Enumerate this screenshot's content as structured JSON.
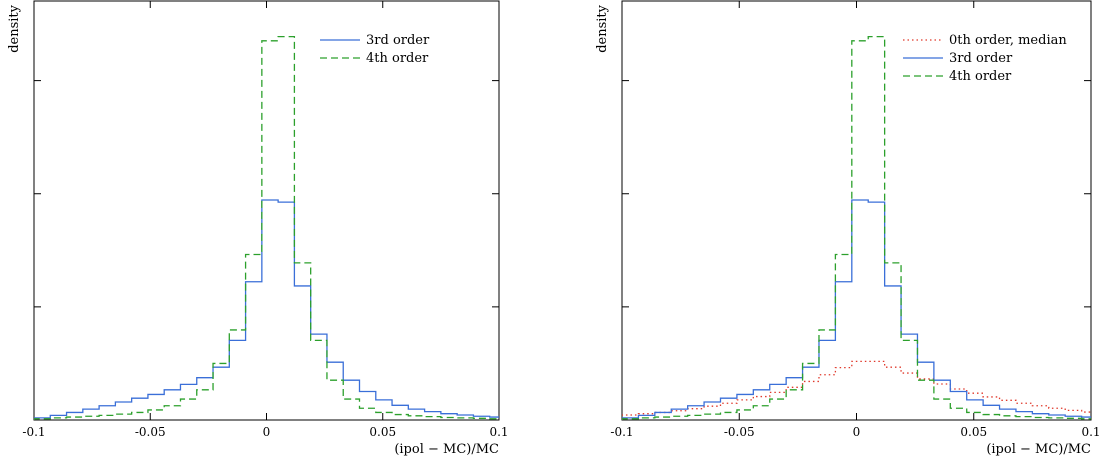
{
  "chart_data": [
    {
      "type": "line",
      "step": true,
      "xlabel": "(ipol − MC)/MC",
      "ylabel": "density",
      "xlim": [
        -0.1,
        0.1
      ],
      "ylim": [
        0,
        1.0
      ],
      "y_ticks_labeled": false,
      "grid": false,
      "legend_position": "top-right",
      "bin_edges": [
        -0.1,
        -0.093,
        -0.086,
        -0.079,
        -0.072,
        -0.065,
        -0.058,
        -0.051,
        -0.044,
        -0.037,
        -0.03,
        -0.023,
        -0.016,
        -0.009,
        -0.002,
        0.005,
        0.012,
        0.019,
        0.026,
        0.033,
        0.04,
        0.047,
        0.054,
        0.061,
        0.068,
        0.075,
        0.082,
        0.089,
        0.096,
        0.1
      ],
      "x_ticks": [
        {
          "value": -0.1,
          "label": "-0.1"
        },
        {
          "value": -0.05,
          "label": "-0.05"
        },
        {
          "value": 0,
          "label": "0"
        },
        {
          "value": 0.05,
          "label": "0.05"
        },
        {
          "value": 0.1,
          "label": "0.1"
        }
      ],
      "y_ticks": [
        0,
        0.27,
        0.54,
        0.81
      ],
      "series": [
        {
          "name": "3rd order",
          "style": "solid",
          "color": "#3a6fd8",
          "values": [
            0.005,
            0.011,
            0.018,
            0.026,
            0.034,
            0.043,
            0.052,
            0.061,
            0.072,
            0.085,
            0.101,
            0.126,
            0.19,
            0.33,
            0.525,
            0.52,
            0.32,
            0.205,
            0.138,
            0.095,
            0.068,
            0.048,
            0.035,
            0.026,
            0.02,
            0.015,
            0.012,
            0.009,
            0.007
          ]
        },
        {
          "name": "4th order",
          "style": "dashed",
          "color": "#2ca02c",
          "values": [
            0.003,
            0.005,
            0.007,
            0.009,
            0.011,
            0.014,
            0.018,
            0.024,
            0.034,
            0.05,
            0.072,
            0.135,
            0.215,
            0.395,
            0.905,
            0.915,
            0.375,
            0.19,
            0.095,
            0.05,
            0.028,
            0.018,
            0.013,
            0.01,
            0.008,
            0.006,
            0.005,
            0.004,
            0.003
          ]
        }
      ]
    },
    {
      "type": "line",
      "step": true,
      "xlabel": "(ipol − MC)/MC",
      "ylabel": "density",
      "xlim": [
        -0.1,
        0.1
      ],
      "ylim": [
        0,
        1.0
      ],
      "y_ticks_labeled": false,
      "grid": false,
      "legend_position": "top-right",
      "bin_edges": [
        -0.1,
        -0.093,
        -0.086,
        -0.079,
        -0.072,
        -0.065,
        -0.058,
        -0.051,
        -0.044,
        -0.037,
        -0.03,
        -0.023,
        -0.016,
        -0.009,
        -0.002,
        0.005,
        0.012,
        0.019,
        0.026,
        0.033,
        0.04,
        0.047,
        0.054,
        0.061,
        0.068,
        0.075,
        0.082,
        0.089,
        0.096,
        0.1
      ],
      "x_ticks": [
        {
          "value": -0.1,
          "label": "-0.1"
        },
        {
          "value": -0.05,
          "label": "-0.05"
        },
        {
          "value": 0,
          "label": "0"
        },
        {
          "value": 0.05,
          "label": "0.05"
        },
        {
          "value": 0.1,
          "label": "0.1"
        }
      ],
      "y_ticks": [
        0,
        0.27,
        0.54,
        0.81
      ],
      "series": [
        {
          "name": "0th order, median",
          "style": "dotted",
          "color": "#e0392b",
          "values": [
            0.012,
            0.015,
            0.018,
            0.022,
            0.027,
            0.033,
            0.04,
            0.048,
            0.056,
            0.066,
            0.078,
            0.092,
            0.108,
            0.125,
            0.14,
            0.14,
            0.126,
            0.112,
            0.098,
            0.086,
            0.074,
            0.064,
            0.055,
            0.047,
            0.04,
            0.034,
            0.028,
            0.023,
            0.019
          ]
        },
        {
          "name": "3rd order",
          "style": "solid",
          "color": "#3a6fd8",
          "values": [
            0.005,
            0.011,
            0.018,
            0.026,
            0.034,
            0.043,
            0.052,
            0.061,
            0.072,
            0.085,
            0.101,
            0.126,
            0.19,
            0.33,
            0.525,
            0.52,
            0.32,
            0.205,
            0.138,
            0.095,
            0.068,
            0.048,
            0.035,
            0.026,
            0.02,
            0.015,
            0.012,
            0.009,
            0.007
          ]
        },
        {
          "name": "4th order",
          "style": "dashed",
          "color": "#2ca02c",
          "values": [
            0.003,
            0.005,
            0.007,
            0.009,
            0.011,
            0.014,
            0.018,
            0.024,
            0.034,
            0.05,
            0.072,
            0.135,
            0.215,
            0.395,
            0.905,
            0.915,
            0.375,
            0.19,
            0.095,
            0.05,
            0.028,
            0.018,
            0.013,
            0.01,
            0.008,
            0.006,
            0.005,
            0.004,
            0.003
          ]
        }
      ]
    }
  ]
}
